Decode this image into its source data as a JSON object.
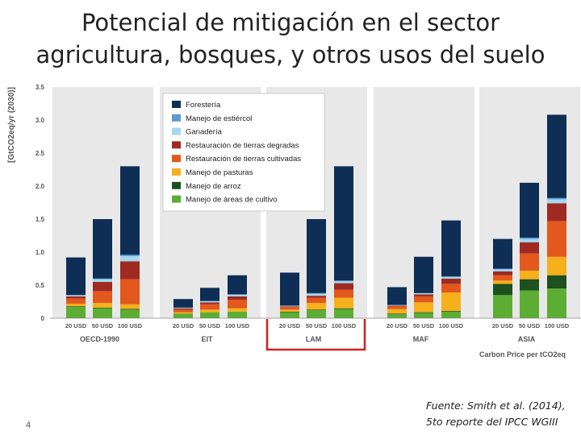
{
  "slide": {
    "title_line1": "Potencial de mitigación en el sector",
    "title_line2": "agricultura, bosques, y otros usos del suelo",
    "page_number": "4",
    "source_line1": "Fuente: Smith et al. (2014),",
    "source_line2": "5to reporte del IPCC WGIII"
  },
  "colors": {
    "Forestería": "#0e2e55",
    "Manejo de estiércol": "#5a9bd3",
    "Ganadería": "#a6d8ee",
    "Restauración de tierras degradas": "#9e2a22",
    "Restauración de tierras cultivadas": "#e2581d",
    "Manejo de pasturas": "#f5b01b",
    "Manejo de arroz": "#1e4f1e",
    "Manejo de áreas de cultivo": "#5cad33",
    "highlight": "#d42020",
    "panel_bg": "#e8e8e8"
  },
  "chart_data": {
    "type": "bar",
    "stacked": true,
    "ylabel": "[GtCO2eq/yr (2030)]",
    "ylim": [
      0,
      3.5
    ],
    "yticks": [
      "0",
      "0.5",
      "1.0",
      "1.5",
      "2.0",
      "2.5",
      "3.0",
      "3.5"
    ],
    "xlabel": "Carbon Price per tCO2eq",
    "highlighted_region": "LAM",
    "legend_order": [
      "Forestería",
      "Manejo de estiércol",
      "Ganadería",
      "Restauración de tierras degradas",
      "Restauración de tierras cultivadas",
      "Manejo de pasturas",
      "Manejo de arroz",
      "Manejo de áreas de cultivo"
    ],
    "stack_order": [
      "Manejo de áreas de cultivo",
      "Manejo de arroz",
      "Manejo de pasturas",
      "Restauración de tierras cultivadas",
      "Restauración de tierras degradas",
      "Ganadería",
      "Manejo de estiércol",
      "Forestería"
    ],
    "regions": [
      {
        "name": "OECD-1990",
        "bars": [
          {
            "label": "20 USD",
            "values": [
              0.17,
              0.01,
              0.04,
              0.08,
              0.03,
              0.02,
              0.0,
              0.57
            ]
          },
          {
            "label": "50 USD",
            "values": [
              0.15,
              0.01,
              0.07,
              0.18,
              0.14,
              0.04,
              0.01,
              0.9
            ]
          },
          {
            "label": "100 USD",
            "values": [
              0.13,
              0.01,
              0.07,
              0.38,
              0.27,
              0.08,
              0.02,
              1.34
            ]
          }
        ]
      },
      {
        "name": "EIT",
        "bars": [
          {
            "label": "20 USD",
            "values": [
              0.07,
              0.0,
              0.02,
              0.04,
              0.02,
              0.01,
              0.0,
              0.13
            ]
          },
          {
            "label": "50 USD",
            "values": [
              0.09,
              0.0,
              0.04,
              0.08,
              0.03,
              0.02,
              0.0,
              0.2
            ]
          },
          {
            "label": "100 USD",
            "values": [
              0.1,
              0.0,
              0.05,
              0.13,
              0.05,
              0.03,
              0.0,
              0.29
            ]
          }
        ]
      },
      {
        "name": "LAM",
        "bars": [
          {
            "label": "20 USD",
            "values": [
              0.09,
              0.01,
              0.03,
              0.04,
              0.01,
              0.01,
              0.0,
              0.5
            ]
          },
          {
            "label": "50 USD",
            "values": [
              0.12,
              0.01,
              0.1,
              0.08,
              0.03,
              0.03,
              0.01,
              1.12
            ]
          },
          {
            "label": "100 USD",
            "values": [
              0.14,
              0.01,
              0.16,
              0.12,
              0.1,
              0.03,
              0.01,
              1.73
            ]
          }
        ]
      },
      {
        "name": "MAF",
        "bars": [
          {
            "label": "20 USD",
            "values": [
              0.06,
              0.01,
              0.07,
              0.04,
              0.01,
              0.01,
              0.0,
              0.27
            ]
          },
          {
            "label": "50 USD",
            "values": [
              0.08,
              0.01,
              0.15,
              0.09,
              0.03,
              0.02,
              0.0,
              0.55
            ]
          },
          {
            "label": "100 USD",
            "values": [
              0.1,
              0.01,
              0.28,
              0.13,
              0.08,
              0.03,
              0.0,
              0.85
            ]
          }
        ]
      },
      {
        "name": "ASIA",
        "bars": [
          {
            "label": "20 USD",
            "values": [
              0.35,
              0.17,
              0.05,
              0.08,
              0.06,
              0.03,
              0.01,
              0.45
            ]
          },
          {
            "label": "50 USD",
            "values": [
              0.42,
              0.17,
              0.13,
              0.26,
              0.17,
              0.05,
              0.02,
              0.83
            ]
          },
          {
            "label": "100 USD",
            "values": [
              0.45,
              0.2,
              0.28,
              0.54,
              0.27,
              0.06,
              0.02,
              1.26
            ]
          }
        ]
      }
    ]
  }
}
